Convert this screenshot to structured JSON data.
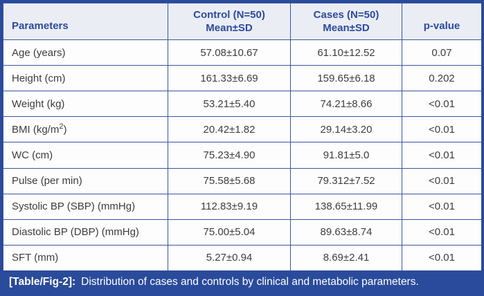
{
  "table": {
    "header": {
      "parameters": "Parameters",
      "control_line1": "Control (N=50)",
      "control_line2": "Mean±SD",
      "cases_line1": "Cases (N=50)",
      "cases_line2": "Mean±SD",
      "p_value": "p-value"
    },
    "rows": [
      {
        "parameter": "Age (years)",
        "control": "57.08±10.67",
        "cases": "61.10±12.52",
        "p": "0.07"
      },
      {
        "parameter": "Height (cm)",
        "control": "161.33±6.69",
        "cases": "159.65±6.18",
        "p": "0.202"
      },
      {
        "parameter": "Weight (kg)",
        "control": "53.21±5.40",
        "cases": "74.21±8.66",
        "p": "<0.01"
      },
      {
        "parameter": "BMI (kg/m²)",
        "control": "20.42±1.82",
        "cases": "29.14±3.20",
        "p": "<0.01"
      },
      {
        "parameter": "WC (cm)",
        "control": "75.23±4.90",
        "cases": "91.81±5.0",
        "p": "<0.01"
      },
      {
        "parameter": "Pulse (per min)",
        "control": "75.58±5.68",
        "cases": "79.312±7.52",
        "p": "<0.01"
      },
      {
        "parameter": "Systolic BP (SBP) (mmHg)",
        "control": "112.83±9.19",
        "cases": "138.65±11.99",
        "p": "<0.01"
      },
      {
        "parameter": "Diastolic BP (DBP) (mmHg)",
        "control": "75.00±5.04",
        "cases": "89.63±8.74",
        "p": "<0.01"
      },
      {
        "parameter": "SFT (mm)",
        "control": "5.27±0.94",
        "cases": "8.69±2.41",
        "p": "<0.01"
      }
    ]
  },
  "caption": {
    "label": "[Table/Fig-2]:",
    "text": "Distribution of cases and controls by clinical and metabolic parameters."
  },
  "colors": {
    "accent_blue": "#2a4b9b",
    "grid_line_blue": "#3a569d",
    "header_bg": "#ebedf5",
    "header_text": "#2b4a9c",
    "body_text": "#3d3d3d",
    "caption_text": "#ffffff"
  }
}
